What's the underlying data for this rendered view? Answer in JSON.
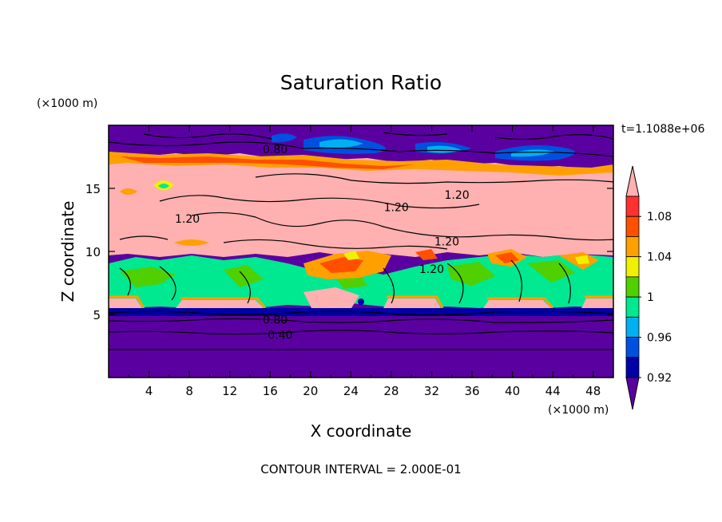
{
  "chart_data": {
    "type": "contour",
    "title": "Saturation Ratio",
    "xlabel": "X coordinate",
    "ylabel": "Z coordinate",
    "x_unit": "(×1000 m)",
    "y_unit": "(×1000 m)",
    "time_label": "t=1.1088e+06",
    "footer": "CONTOUR INTERVAL = 2.000E-01",
    "xlim": [
      0,
      50
    ],
    "ylim": [
      0,
      20
    ],
    "x_ticks": [
      4,
      8,
      12,
      16,
      20,
      24,
      28,
      32,
      36,
      40,
      44,
      48
    ],
    "y_ticks": [
      5,
      10,
      15
    ],
    "colorbar": {
      "labels": [
        "1.08",
        "1.04",
        "1",
        "0.96",
        "0.92"
      ],
      "levels": [
        0.9,
        0.92,
        0.94,
        0.96,
        0.98,
        1.0,
        1.02,
        1.04,
        1.06,
        1.08,
        1.1
      ],
      "colors": [
        "#5a00a0",
        "#0000a8",
        "#0050e0",
        "#00b0f0",
        "#00e890",
        "#50d000",
        "#f0f000",
        "#ffa000",
        "#ff5000",
        "#ff3030",
        "#ffb0b0"
      ]
    },
    "contour_labels": [
      {
        "text": "0.80",
        "x": 16.5,
        "z": 18.1
      },
      {
        "text": "1.20",
        "x": 7.8,
        "z": 12.6
      },
      {
        "text": "1.20",
        "x": 28.5,
        "z": 13.5
      },
      {
        "text": "1.20",
        "x": 34.5,
        "z": 14.5
      },
      {
        "text": "1.20",
        "x": 33.5,
        "z": 10.8
      },
      {
        "text": "1.20",
        "x": 32.0,
        "z": 8.6
      },
      {
        "text": "0.80",
        "x": 16.5,
        "z": 4.6
      },
      {
        "text": "0.40",
        "x": 17.0,
        "z": 3.4
      }
    ]
  }
}
